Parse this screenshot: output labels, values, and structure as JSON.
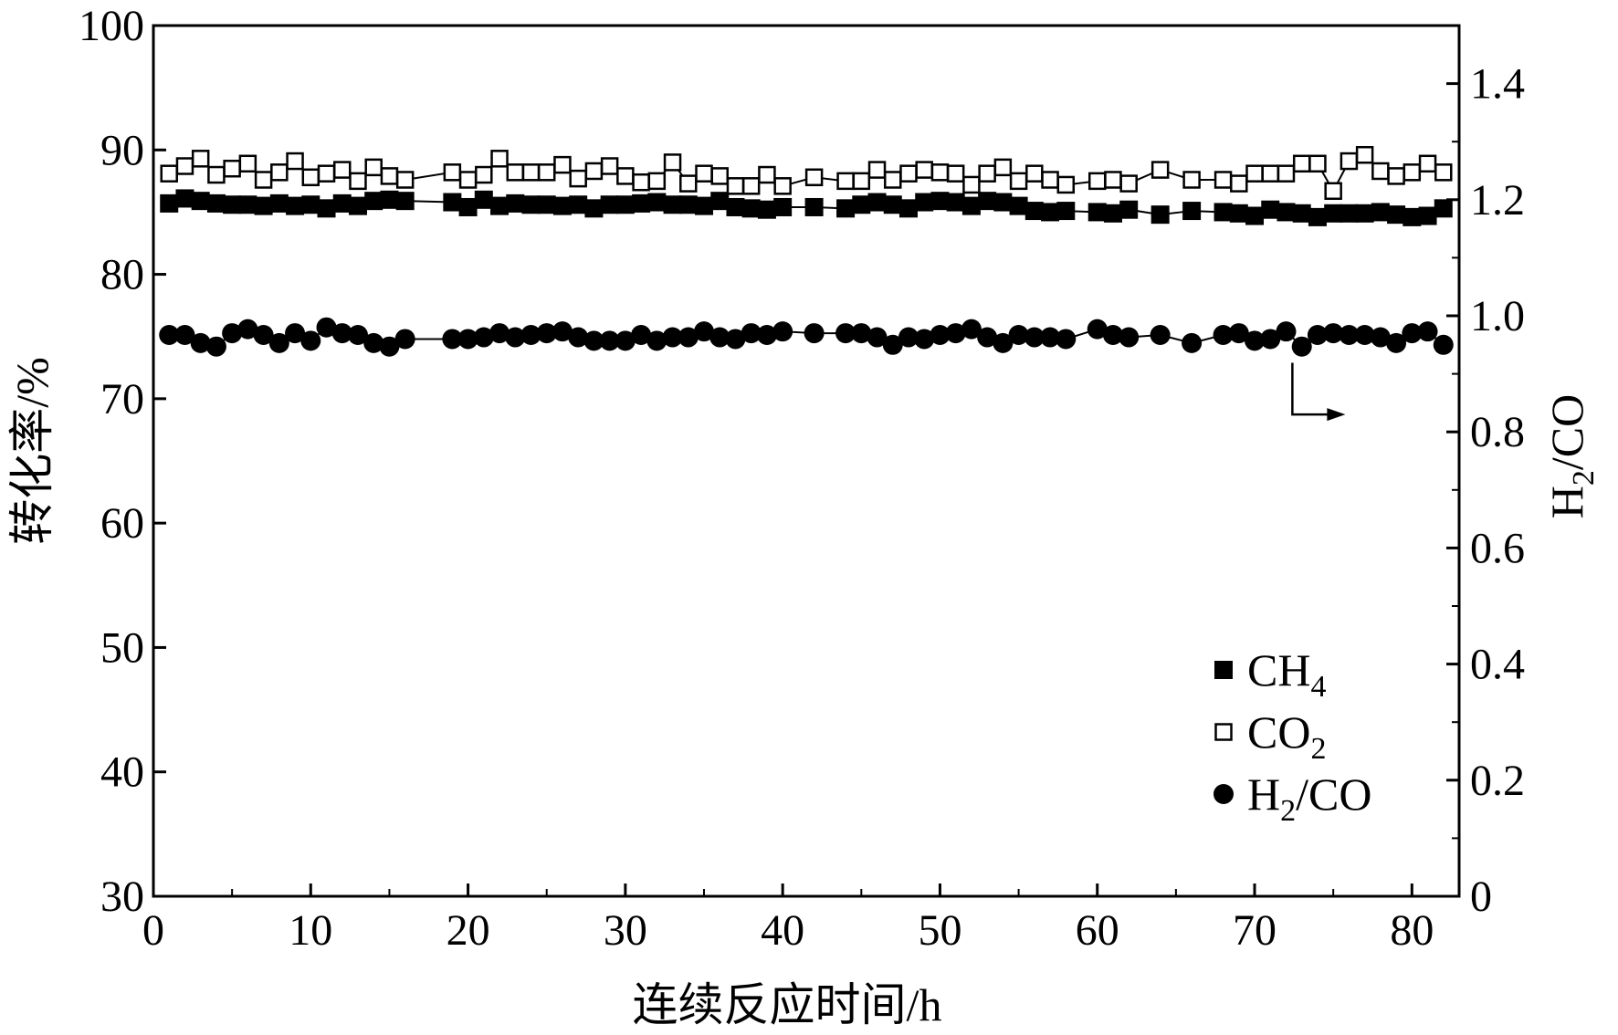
{
  "chart_data": {
    "type": "scatter",
    "title": "",
    "xlabel": "连续反应时间/h",
    "ylabel": "转化率/%",
    "y2label": "H2/CO",
    "y2label_parts": {
      "main": "H",
      "sub": "2",
      "rest": "/CO"
    },
    "xlim": [
      0,
      83
    ],
    "ylim": [
      30,
      100
    ],
    "y2lim": [
      0,
      1.5
    ],
    "xticks": [
      0,
      10,
      20,
      30,
      40,
      50,
      60,
      70,
      80
    ],
    "yticks": [
      30,
      40,
      50,
      60,
      70,
      80,
      90,
      100
    ],
    "y2ticks": [
      "0",
      "0.2",
      "0.4",
      "0.6",
      "0.8",
      "1.0",
      "1.2",
      "1.4"
    ],
    "grid": false,
    "legend_position": "bottom-right",
    "series": [
      {
        "name": "CH4",
        "legend": {
          "main": "CH",
          "sub": "4"
        },
        "axis": "left",
        "marker": "filled-square",
        "x": [
          1,
          2,
          3,
          4,
          5,
          6,
          7,
          8,
          9,
          10,
          11,
          12,
          13,
          14,
          15,
          16,
          19,
          20,
          21,
          22,
          23,
          24,
          25,
          26,
          27,
          28,
          29,
          30,
          31,
          32,
          33,
          34,
          35,
          36,
          37,
          38,
          39,
          40,
          42,
          44,
          45,
          46,
          47,
          48,
          49,
          50,
          51,
          52,
          53,
          54,
          55,
          56,
          57,
          58,
          60,
          61,
          62,
          64,
          66,
          68,
          69,
          70,
          71,
          72,
          73,
          74,
          75,
          76,
          77,
          78,
          79,
          80,
          81,
          82
        ],
        "y": [
          85.7,
          86.1,
          85.9,
          85.7,
          85.6,
          85.6,
          85.5,
          85.7,
          85.5,
          85.6,
          85.3,
          85.7,
          85.5,
          85.9,
          86.0,
          85.9,
          85.8,
          85.4,
          86.0,
          85.5,
          85.7,
          85.6,
          85.6,
          85.5,
          85.6,
          85.3,
          85.6,
          85.6,
          85.7,
          85.8,
          85.6,
          85.6,
          85.5,
          85.9,
          85.4,
          85.3,
          85.2,
          85.4,
          85.4,
          85.3,
          85.6,
          85.8,
          85.6,
          85.3,
          85.8,
          85.9,
          85.8,
          85.5,
          85.9,
          85.8,
          85.5,
          85.1,
          85.0,
          85.1,
          85.0,
          84.9,
          85.2,
          84.8,
          85.1,
          85.0,
          84.9,
          84.7,
          85.2,
          85.0,
          84.9,
          84.6,
          84.9,
          84.9,
          84.9,
          85.0,
          84.8,
          84.6,
          84.7,
          85.3
        ]
      },
      {
        "name": "CO2",
        "legend": {
          "main": "CO",
          "sub": "2"
        },
        "axis": "left",
        "marker": "open-square",
        "x": [
          1,
          2,
          3,
          4,
          5,
          6,
          7,
          8,
          9,
          10,
          11,
          12,
          13,
          14,
          15,
          16,
          19,
          20,
          21,
          22,
          23,
          24,
          25,
          26,
          27,
          28,
          29,
          30,
          31,
          32,
          33,
          34,
          35,
          36,
          37,
          38,
          39,
          40,
          42,
          44,
          45,
          46,
          47,
          48,
          49,
          50,
          51,
          52,
          53,
          54,
          55,
          56,
          57,
          58,
          60,
          61,
          62,
          64,
          66,
          68,
          69,
          70,
          71,
          72,
          73,
          74,
          75,
          76,
          77,
          78,
          79,
          80,
          81,
          82
        ],
        "y": [
          88.1,
          88.7,
          89.3,
          88.0,
          88.5,
          88.9,
          87.6,
          88.2,
          89.1,
          87.8,
          88.1,
          88.4,
          87.5,
          88.6,
          87.9,
          87.6,
          88.2,
          87.6,
          88.0,
          89.3,
          88.2,
          88.2,
          88.2,
          88.8,
          87.7,
          88.3,
          88.7,
          87.9,
          87.4,
          87.5,
          89.0,
          87.3,
          88.1,
          87.9,
          87.1,
          87.1,
          88.0,
          87.1,
          87.8,
          87.5,
          87.5,
          88.4,
          87.6,
          88.1,
          88.4,
          88.2,
          88.1,
          87.2,
          88.1,
          88.6,
          87.5,
          88.1,
          87.6,
          87.2,
          87.5,
          87.6,
          87.3,
          88.4,
          87.6,
          87.6,
          87.3,
          88.1,
          88.1,
          88.1,
          88.9,
          88.9,
          86.7,
          89.1,
          89.6,
          88.3,
          87.9,
          88.2,
          88.9,
          88.2
        ]
      },
      {
        "name": "H2/CO",
        "legend": {
          "main": "H",
          "sub": "2",
          "rest": "/CO"
        },
        "axis": "right",
        "marker": "filled-circle",
        "x": [
          1,
          2,
          3,
          4,
          5,
          6,
          7,
          8,
          9,
          10,
          11,
          12,
          13,
          14,
          15,
          16,
          19,
          20,
          21,
          22,
          23,
          24,
          25,
          26,
          27,
          28,
          29,
          30,
          31,
          32,
          33,
          34,
          35,
          36,
          37,
          38,
          39,
          40,
          42,
          44,
          45,
          46,
          47,
          48,
          49,
          50,
          51,
          52,
          53,
          54,
          55,
          56,
          57,
          58,
          60,
          61,
          62,
          64,
          66,
          68,
          69,
          70,
          71,
          72,
          73,
          74,
          75,
          76,
          77,
          78,
          79,
          80,
          81,
          82
        ],
        "y": [
          0.967,
          0.967,
          0.953,
          0.947,
          0.97,
          0.977,
          0.967,
          0.953,
          0.97,
          0.957,
          0.98,
          0.97,
          0.967,
          0.953,
          0.947,
          0.96,
          0.96,
          0.96,
          0.963,
          0.97,
          0.963,
          0.967,
          0.97,
          0.973,
          0.963,
          0.957,
          0.957,
          0.957,
          0.967,
          0.957,
          0.963,
          0.963,
          0.973,
          0.963,
          0.96,
          0.97,
          0.967,
          0.973,
          0.97,
          0.97,
          0.97,
          0.963,
          0.95,
          0.963,
          0.96,
          0.967,
          0.97,
          0.977,
          0.963,
          0.953,
          0.967,
          0.963,
          0.963,
          0.96,
          0.977,
          0.967,
          0.963,
          0.967,
          0.953,
          0.967,
          0.97,
          0.957,
          0.96,
          0.973,
          0.947,
          0.967,
          0.97,
          0.967,
          0.967,
          0.963,
          0.953,
          0.97,
          0.973,
          0.95
        ]
      }
    ],
    "annotation": "arrow pointing to right axis"
  }
}
